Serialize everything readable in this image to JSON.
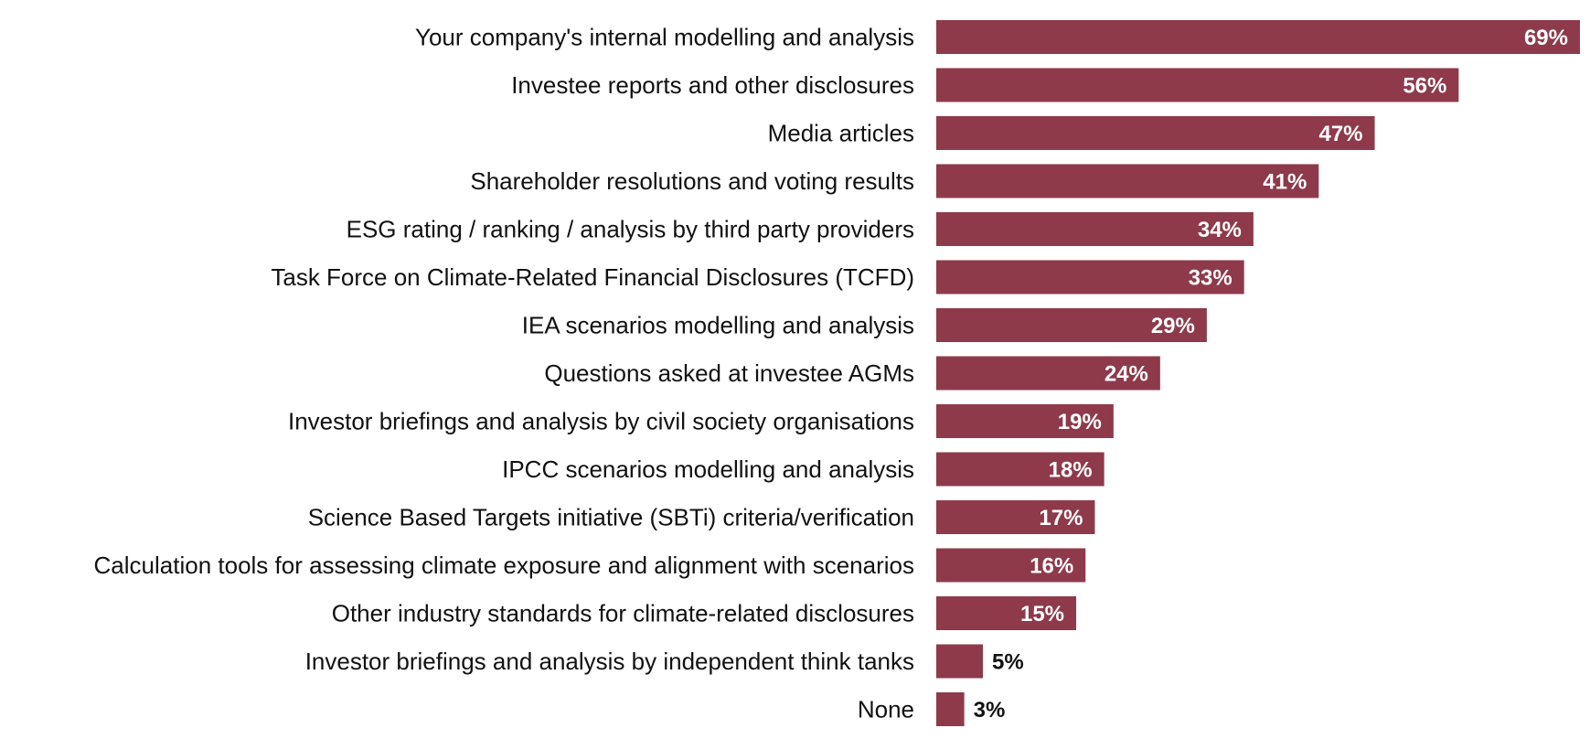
{
  "chart_data": {
    "type": "bar",
    "orientation": "horizontal",
    "categories": [
      "Your company's internal modelling and analysis",
      "Investee reports and other disclosures",
      "Media articles",
      "Shareholder resolutions and voting results",
      "ESG rating / ranking / analysis by third party providers",
      "Task Force on Climate-Related Financial Disclosures (TCFD)",
      "IEA scenarios modelling and analysis",
      "Questions asked at investee AGMs",
      "Investor briefings and analysis by civil society organisations",
      "IPCC scenarios modelling and analysis",
      "Science Based Targets initiative (SBTi) criteria/verification",
      "Calculation tools for assessing climate exposure and alignment with scenarios",
      "Other industry standards for climate-related disclosures",
      "Investor briefings and analysis by independent think tanks",
      "None"
    ],
    "values": [
      69,
      56,
      47,
      41,
      34,
      33,
      29,
      24,
      19,
      18,
      17,
      16,
      15,
      5,
      3
    ],
    "value_labels": [
      "69%",
      "56%",
      "47%",
      "41%",
      "34%",
      "33%",
      "29%",
      "24%",
      "19%",
      "18%",
      "17%",
      "16%",
      "15%",
      "5%",
      "3%"
    ],
    "unit": "%",
    "xlim": [
      0,
      69
    ],
    "grid": false,
    "legend": "none",
    "colors": {
      "bar": "#8e3a4a",
      "label_inside": "#ffffff",
      "label_outside": "#111111"
    }
  }
}
